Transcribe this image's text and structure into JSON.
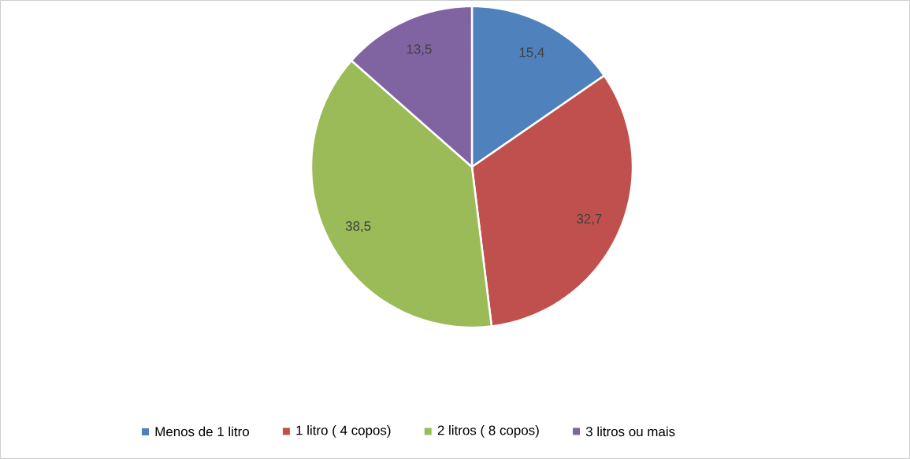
{
  "chart_data": {
    "type": "pie",
    "categories": [
      "Menos de 1 litro",
      "1 litro ( 4 copos)",
      "2 litros ( 8 copos)",
      "3 litros ou mais"
    ],
    "values": [
      15.4,
      32.7,
      38.5,
      13.5
    ],
    "value_labels": [
      "15,4",
      "32,7",
      "38,5",
      "13,5"
    ],
    "colors": [
      "#4f81bd",
      "#c0504d",
      "#9bbb59",
      "#8064a2"
    ],
    "legend": "bottom"
  }
}
